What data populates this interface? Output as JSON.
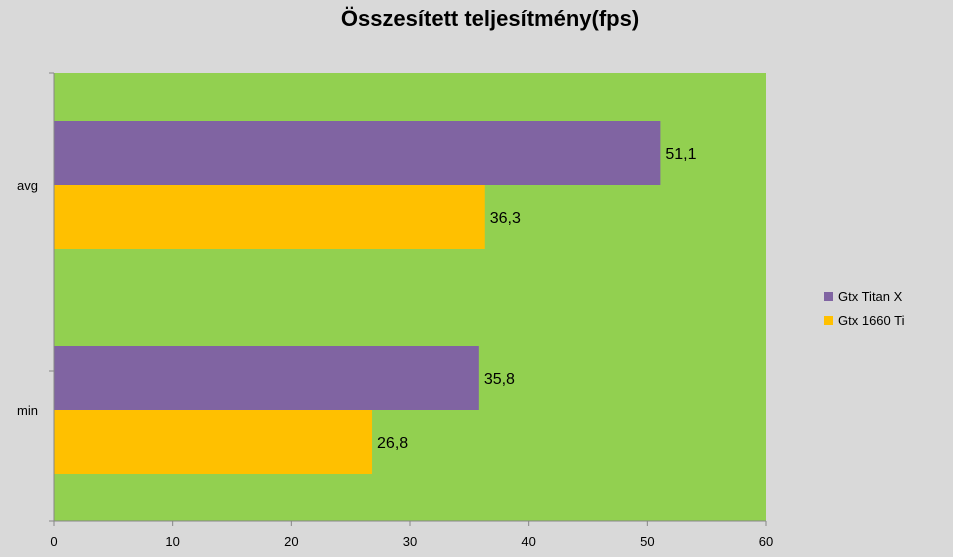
{
  "chart_data": {
    "type": "bar",
    "orientation": "horizontal",
    "title": "Összesített teljesítmény(fps)",
    "categories": [
      "avg",
      "min"
    ],
    "series": [
      {
        "name": "Gtx Titan X",
        "values": [
          51.1,
          35.8
        ],
        "labels": [
          "51,1",
          "35,8"
        ],
        "color": "#8064a2"
      },
      {
        "name": "Gtx 1660 Ti",
        "values": [
          36.3,
          26.8
        ],
        "labels": [
          "36,3",
          "26,8"
        ],
        "color": "#ffc000"
      }
    ],
    "xlim": [
      0,
      60
    ],
    "xticks": [
      0,
      10,
      20,
      30,
      40,
      50,
      60
    ],
    "xlabel": "",
    "ylabel": "",
    "grid": false,
    "legend": "right",
    "plot_background": "#92d050",
    "page_background": "#d9d9d9"
  }
}
